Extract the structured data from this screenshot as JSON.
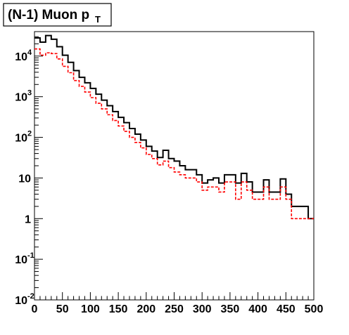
{
  "chart_data": {
    "type": "histogram",
    "title": "(N-1) Muon p",
    "title_subscript": "T",
    "xlabel": "",
    "ylabel": "",
    "xlim": [
      0,
      500
    ],
    "ylim": [
      0.01,
      40000
    ],
    "yscale": "log",
    "grid": false,
    "legend": "none",
    "x_tick_labels": [
      "0",
      "50",
      "100",
      "150",
      "200",
      "250",
      "300",
      "350",
      "400",
      "450",
      "500"
    ],
    "y_tick_labels": [
      {
        "base": "10",
        "exp": "-2"
      },
      {
        "base": "10",
        "exp": "-1"
      },
      {
        "base": "1",
        "exp": ""
      },
      {
        "base": "10",
        "exp": ""
      },
      {
        "base": "10",
        "exp": "2"
      },
      {
        "base": "10",
        "exp": "3"
      },
      {
        "base": "10",
        "exp": "4"
      }
    ],
    "bin_width": 10,
    "bin_edges_start": 0,
    "series": [
      {
        "color": "#000000",
        "style": "solid",
        "values": [
          28000,
          22000,
          32000,
          26000,
          17000,
          10500,
          7000,
          4400,
          3000,
          2200,
          1600,
          1150,
          820,
          600,
          430,
          310,
          230,
          165,
          120,
          86,
          60,
          46,
          32,
          48,
          30,
          26,
          20,
          16,
          16,
          12,
          7.5,
          9,
          10,
          7.5,
          12,
          12,
          7.5,
          13,
          8,
          4.5,
          4.5,
          9,
          4.5,
          4.5,
          9.5,
          4,
          2,
          2,
          2,
          1
        ]
      },
      {
        "color": "#ff0000",
        "style": "dashed",
        "values": [
          15000,
          10500,
          12000,
          11500,
          8500,
          5600,
          3900,
          2500,
          1800,
          1300,
          950,
          690,
          500,
          360,
          260,
          190,
          140,
          100,
          75,
          55,
          38,
          30,
          21,
          26,
          18,
          14,
          12,
          10,
          10,
          8,
          5,
          6,
          6,
          4.5,
          8,
          8,
          3,
          8,
          5,
          3,
          3,
          6,
          3,
          3,
          6,
          3,
          1,
          1,
          1,
          1
        ]
      }
    ]
  }
}
